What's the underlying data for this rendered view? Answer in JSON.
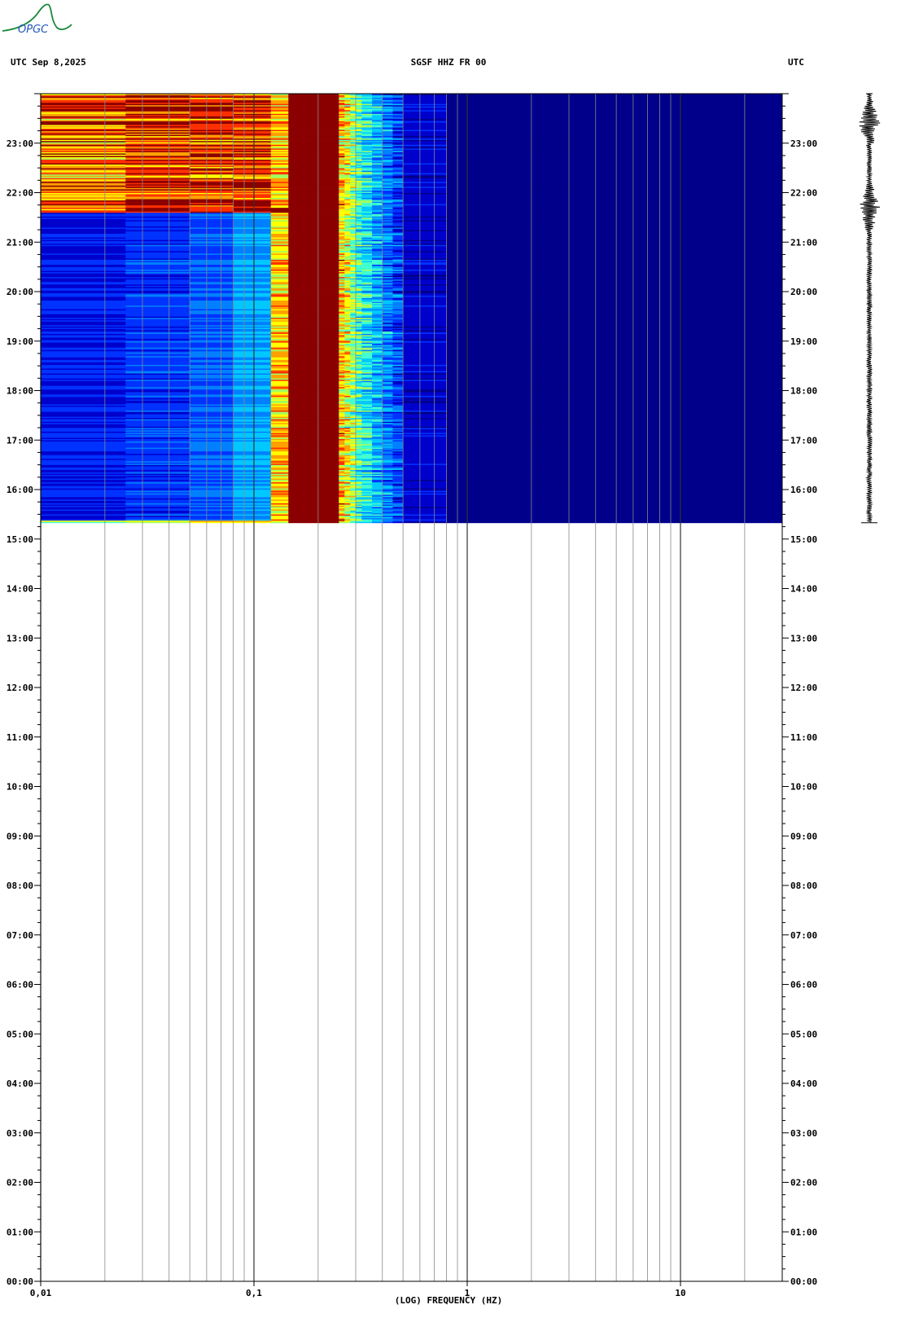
{
  "header": {
    "left": "UTC  Sep 8,2025",
    "center": "SGSF HHZ FR 00",
    "right": "UTC"
  },
  "logo_text": "OPGC",
  "chart_data": {
    "type": "heatmap",
    "title": "SGSF HHZ FR 00",
    "date": "Sep 8,2025",
    "timezone": "UTC",
    "xlabel": "(LOG) FREQUENCY (HZ)",
    "x_scale": "log",
    "xlim": [
      0.01,
      30
    ],
    "x_tick_labels": [
      {
        "value": 0.01,
        "label": "0,01"
      },
      {
        "value": 0.1,
        "label": "0,1"
      },
      {
        "value": 1,
        "label": "1"
      },
      {
        "value": 10,
        "label": "10"
      }
    ],
    "ylim_hours": [
      0,
      24
    ],
    "y_ticks": [
      "00:00",
      "01:00",
      "02:00",
      "03:00",
      "04:00",
      "05:00",
      "06:00",
      "07:00",
      "08:00",
      "09:00",
      "10:00",
      "11:00",
      "12:00",
      "13:00",
      "14:00",
      "15:00",
      "16:00",
      "17:00",
      "18:00",
      "19:00",
      "20:00",
      "21:00",
      "22:00",
      "23:00"
    ],
    "data_start_hour": 15.33,
    "data_end_hour": 24,
    "colormap": [
      "#00008b",
      "#0000cd",
      "#0033ff",
      "#0080ff",
      "#00c8ff",
      "#40ffd0",
      "#a0ff60",
      "#ffff00",
      "#ffa000",
      "#ff3000",
      "#8b0000"
    ],
    "frequency_bands": [
      {
        "f_min": 0.01,
        "f_max": 0.025,
        "level": 0.15
      },
      {
        "f_min": 0.025,
        "f_max": 0.05,
        "level": 0.2
      },
      {
        "f_min": 0.05,
        "f_max": 0.08,
        "level": 0.25
      },
      {
        "f_min": 0.08,
        "f_max": 0.12,
        "level": 0.35
      },
      {
        "f_min": 0.12,
        "f_max": 0.145,
        "level": 0.75
      },
      {
        "f_min": 0.145,
        "f_max": 0.25,
        "level": 1.0
      },
      {
        "f_min": 0.25,
        "f_max": 0.32,
        "level": 0.75
      },
      {
        "f_min": 0.32,
        "f_max": 0.5,
        "level": 0.45
      },
      {
        "f_min": 0.5,
        "f_max": 0.8,
        "level": 0.1
      },
      {
        "f_min": 0.8,
        "f_max": 30,
        "level": 0.0
      }
    ],
    "events": [
      {
        "hour_start": 21.6,
        "hour_end": 21.7,
        "f_max": 0.15,
        "level": 1.0
      },
      {
        "hour_start": 21.7,
        "hour_end": 24.0,
        "f_max": 0.12,
        "level": 0.9
      },
      {
        "hour_start": 15.33,
        "hour_end": 15.36,
        "f_max": 0.12,
        "level": 0.85
      }
    ],
    "trace_events_hours": [
      23.4,
      21.7
    ]
  }
}
